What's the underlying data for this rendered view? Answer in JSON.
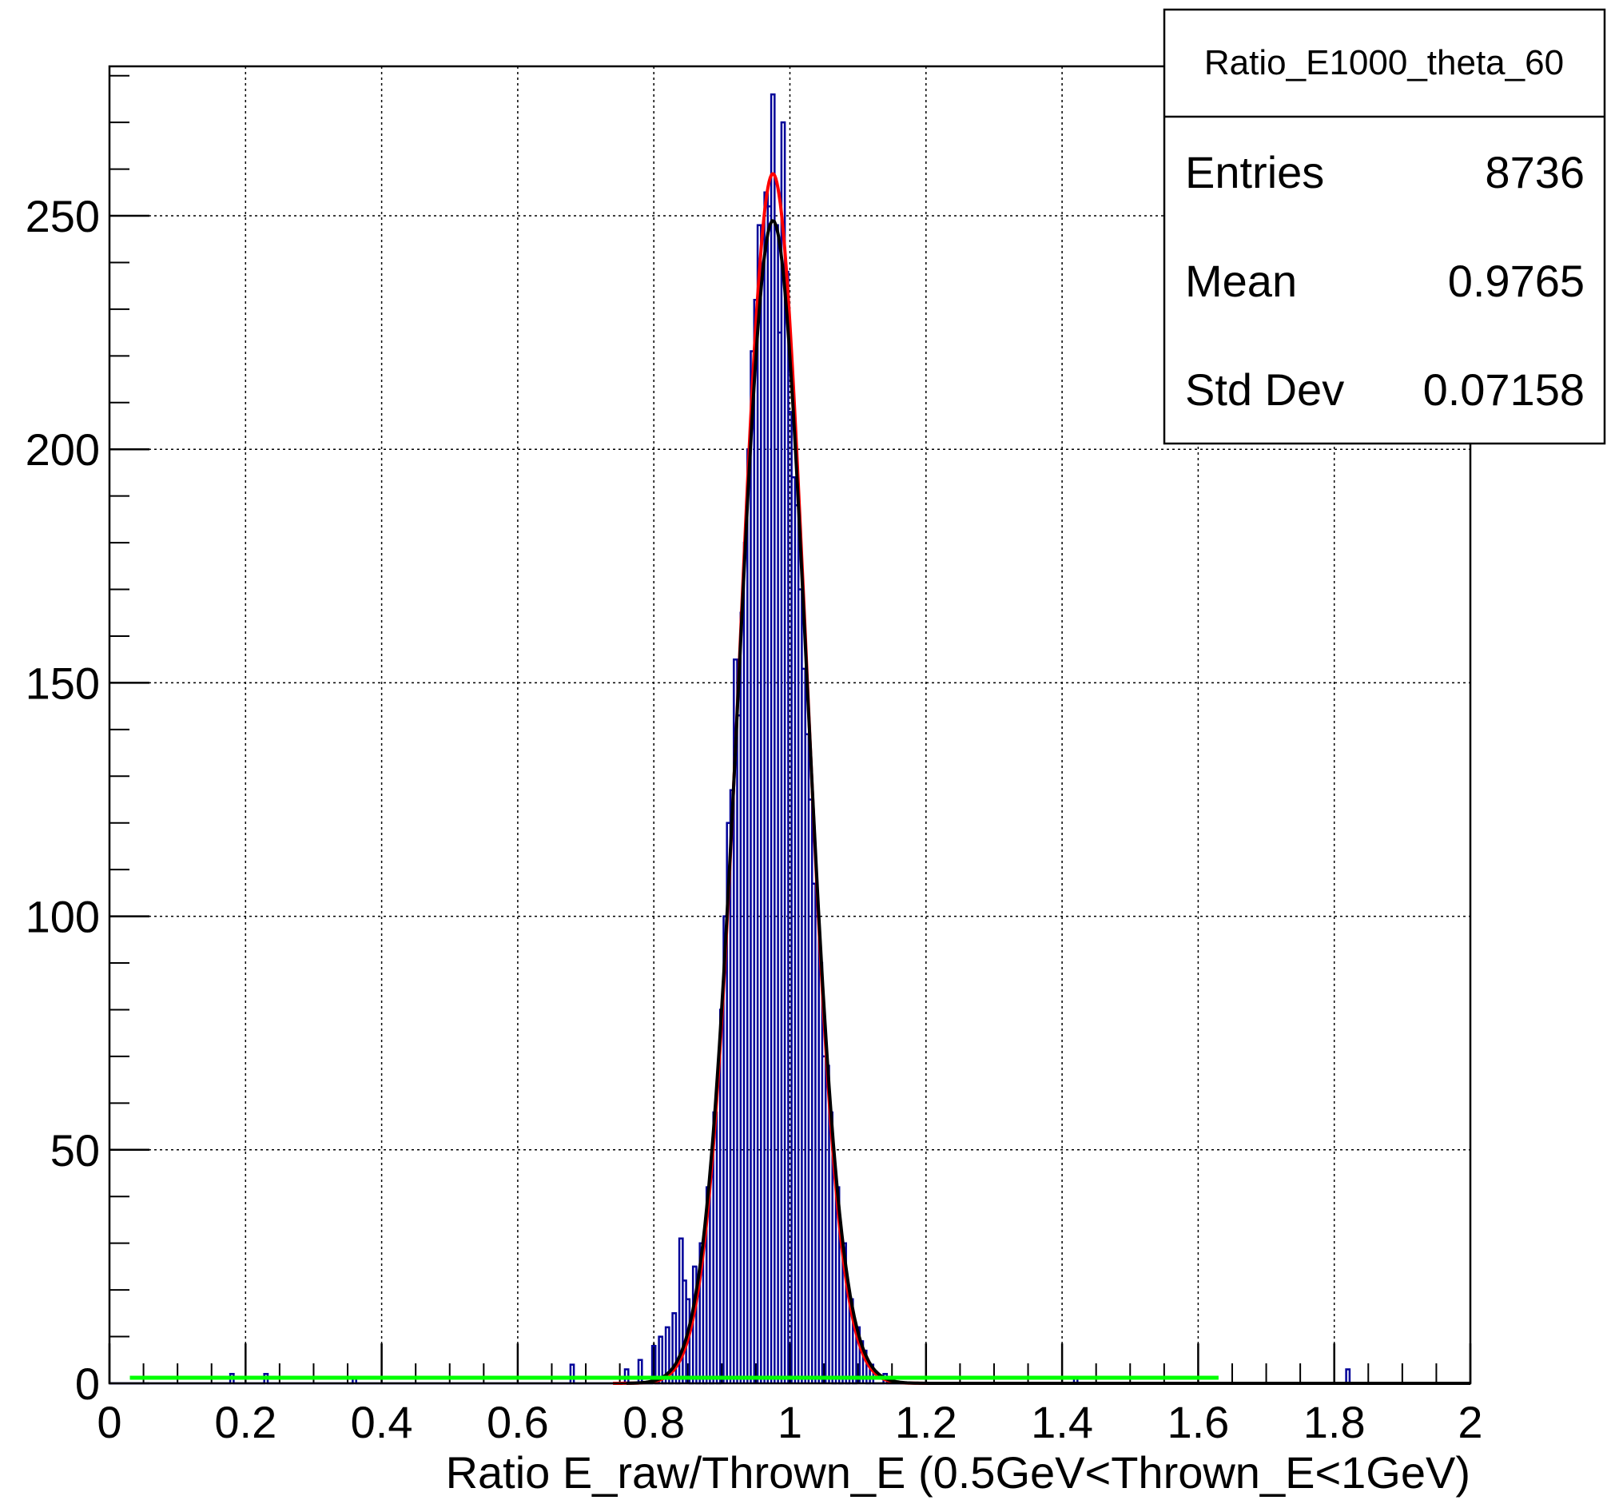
{
  "chart_data": {
    "type": "histogram",
    "xlabel": "Ratio E_raw/Thrown_E (0.5GeV<Thrown_E<1GeV)",
    "ylabel": "",
    "xlim": [
      0,
      2
    ],
    "ylim": [
      0,
      282
    ],
    "grid": true,
    "x_ticks": [
      0,
      0.2,
      0.4,
      0.6,
      0.8,
      1,
      1.2,
      1.4,
      1.6,
      1.8,
      2
    ],
    "x_tick_labels": [
      "0",
      "0.2",
      "0.4",
      "0.6",
      "0.8",
      "1",
      "1.2",
      "1.4",
      "1.6",
      "1.8",
      "2"
    ],
    "y_ticks": [
      0,
      50,
      100,
      150,
      200,
      250
    ],
    "y_tick_labels": [
      "0",
      "50",
      "100",
      "150",
      "200",
      "250"
    ],
    "stats_box": {
      "title": "Ratio_E1000_theta_60",
      "rows": [
        {
          "label": "Entries",
          "value": "8736"
        },
        {
          "label": "Mean",
          "value": "0.9765"
        },
        {
          "label": "Std Dev",
          "value": "0.07158"
        }
      ],
      "placement": "top-right"
    },
    "histogram": {
      "color": "#000099",
      "bins": [
        [
          0.18,
          2
        ],
        [
          0.23,
          2
        ],
        [
          0.36,
          1
        ],
        [
          0.68,
          4
        ],
        [
          0.76,
          3
        ],
        [
          0.78,
          5
        ],
        [
          0.8,
          8
        ],
        [
          0.81,
          10
        ],
        [
          0.82,
          12
        ],
        [
          0.83,
          15
        ],
        [
          0.84,
          31
        ],
        [
          0.845,
          22
        ],
        [
          0.85,
          18
        ],
        [
          0.86,
          25
        ],
        [
          0.87,
          30
        ],
        [
          0.88,
          42
        ],
        [
          0.89,
          58
        ],
        [
          0.9,
          80
        ],
        [
          0.905,
          100
        ],
        [
          0.91,
          120
        ],
        [
          0.915,
          127
        ],
        [
          0.92,
          155
        ],
        [
          0.925,
          143
        ],
        [
          0.93,
          165
        ],
        [
          0.935,
          180
        ],
        [
          0.94,
          200
        ],
        [
          0.945,
          221
        ],
        [
          0.95,
          232
        ],
        [
          0.955,
          248
        ],
        [
          0.96,
          238
        ],
        [
          0.965,
          255
        ],
        [
          0.97,
          252
        ],
        [
          0.975,
          276
        ],
        [
          0.98,
          248
        ],
        [
          0.985,
          225
        ],
        [
          0.99,
          270
        ],
        [
          0.995,
          238
        ],
        [
          1.0,
          208
        ],
        [
          1.005,
          194
        ],
        [
          1.01,
          188
        ],
        [
          1.015,
          170
        ],
        [
          1.02,
          153
        ],
        [
          1.025,
          139
        ],
        [
          1.03,
          125
        ],
        [
          1.035,
          107
        ],
        [
          1.04,
          100
        ],
        [
          1.045,
          90
        ],
        [
          1.05,
          70
        ],
        [
          1.055,
          68
        ],
        [
          1.06,
          58
        ],
        [
          1.07,
          42
        ],
        [
          1.08,
          30
        ],
        [
          1.09,
          18
        ],
        [
          1.1,
          12
        ],
        [
          1.105,
          9
        ],
        [
          1.11,
          7
        ],
        [
          1.12,
          4
        ],
        [
          1.14,
          2
        ],
        [
          1.42,
          1
        ],
        [
          1.82,
          3
        ]
      ]
    },
    "fits": [
      {
        "color": "#ff0000",
        "type": "gaussian",
        "amplitude": 259,
        "mean": 0.975,
        "sigma": 0.0485,
        "range": [
          0.74,
          1.4
        ]
      },
      {
        "color": "#000000",
        "type": "gaussian",
        "amplitude": 249,
        "mean": 0.975,
        "sigma": 0.05,
        "range": [
          0.76,
          2.0
        ]
      },
      {
        "color": "#00ff00",
        "type": "constant",
        "value": 1.2,
        "range": [
          0.03,
          1.63
        ]
      }
    ]
  }
}
